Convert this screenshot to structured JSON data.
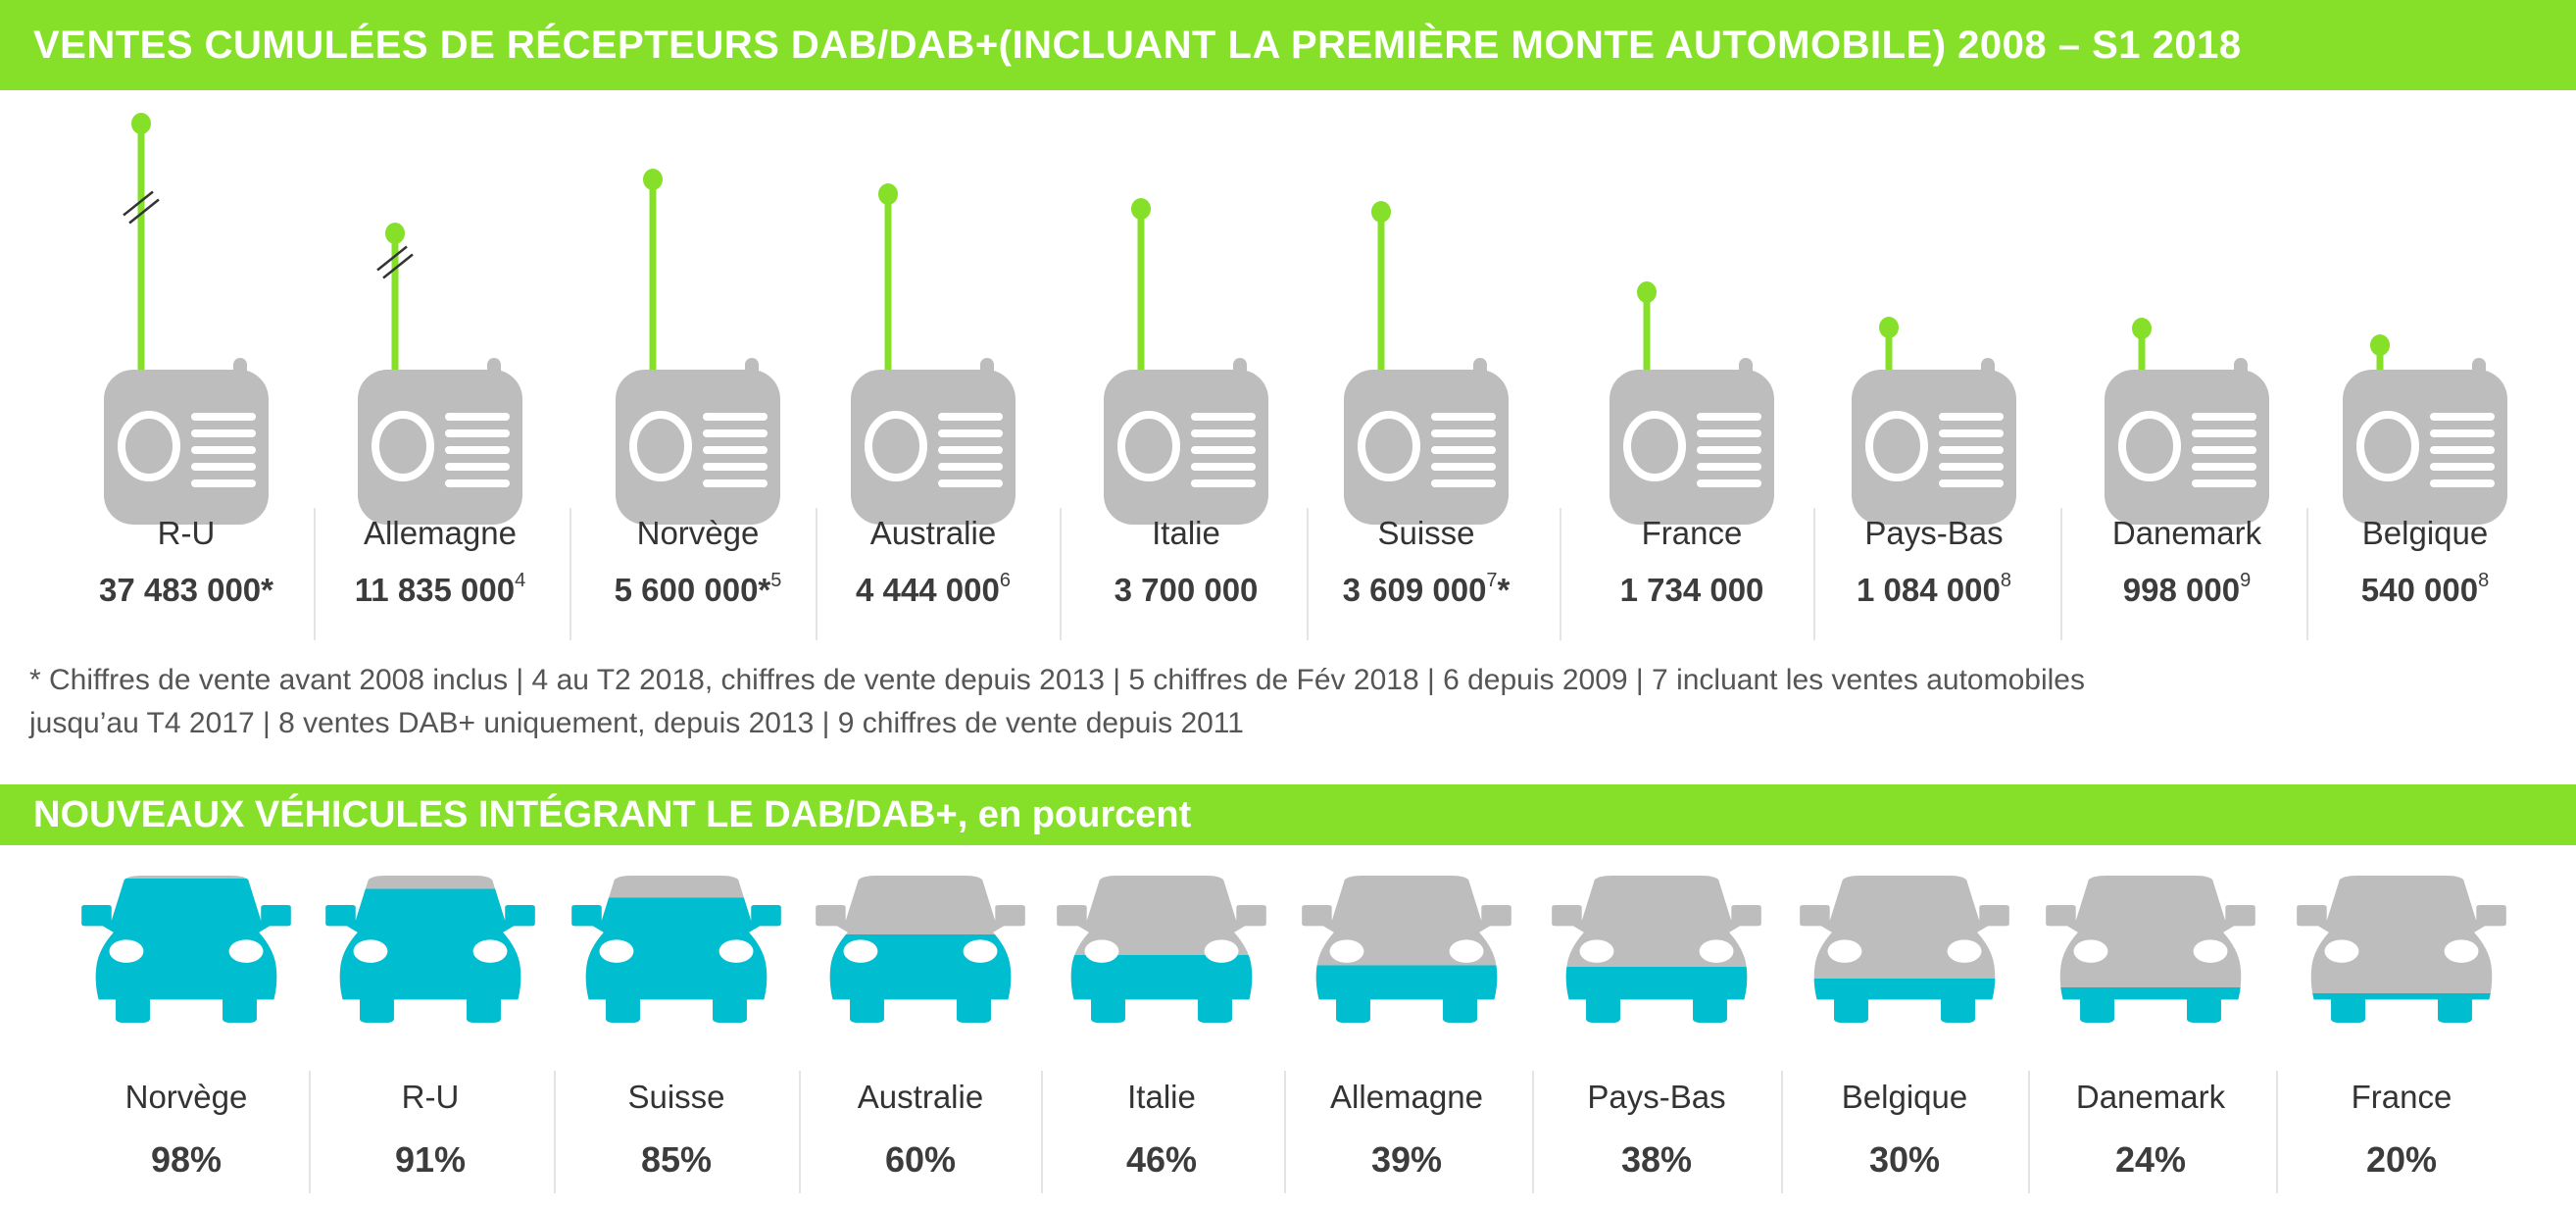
{
  "title1": "VENTES CUMULÉES DE RÉCEPTEURS DAB/DAB+(INCLUANT LA PREMIÈRE MONTE AUTOMOBILE) 2008 – S1 2018",
  "title2": "NOUVEAUX VÉHICULES INTÉGRANT LE  DAB/DAB+, en pourcent",
  "colors": {
    "green": "#86e02a",
    "teal": "#00bdd0",
    "gray": "#bdbdbd"
  },
  "chart_data": [
    {
      "type": "bar",
      "title": "VENTES CUMULÉES DE RÉCEPTEURS DAB/DAB+(INCLUANT LA PREMIÈRE MONTE AUTOMOBILE) 2008 – S1 2018",
      "categories": [
        "R-U",
        "Allemagne",
        "Norvège",
        "Australie",
        "Italie",
        "Suisse",
        "France",
        "Pays-Bas",
        "Danemark",
        "Belgique"
      ],
      "values": [
        37483000,
        11835000,
        5600000,
        4444000,
        3700000,
        3609000,
        1734000,
        1084000,
        998000,
        540000
      ],
      "labels": [
        "37 483 000",
        "11 835 000",
        "5 600 000",
        "4 444 000",
        "3 700 000",
        "3 609 000",
        "1 734 000",
        "1 084 000",
        "998 000",
        "540 000"
      ],
      "notes": [
        "*",
        "4",
        "*5",
        "6",
        "",
        "7*",
        "",
        "8",
        "9",
        "8"
      ],
      "broken_axis": [
        true,
        true,
        false,
        false,
        false,
        false,
        false,
        false,
        false,
        false
      ]
    },
    {
      "type": "bar",
      "title": "NOUVEAUX VÉHICULES INTÉGRANT LE  DAB/DAB+, en pourcent",
      "categories": [
        "Norvège",
        "R-U",
        "Suisse",
        "Australie",
        "Italie",
        "Allemagne",
        "Pays-Bas",
        "Belgique",
        "Danemark",
        "France"
      ],
      "values": [
        98,
        91,
        85,
        60,
        46,
        39,
        38,
        30,
        24,
        20
      ],
      "labels": [
        "98%",
        "91%",
        "85%",
        "60%",
        "46%",
        "39%",
        "38%",
        "30%",
        "24%",
        "20%"
      ],
      "unit": "%"
    }
  ],
  "footnotes": [
    "* Chiffres de vente avant 2008 inclus  | 4 au T2 2018, chiffres de vente depuis 2013 | 5 chiffres de Fév 2018 |  6 depuis 2009 | 7 incluant les ventes automobiles",
    "jusqu’au T4 2017 |  8 ventes DAB+ uniquement, depuis 2013 |  9 chiffres de vente depuis 2011"
  ]
}
